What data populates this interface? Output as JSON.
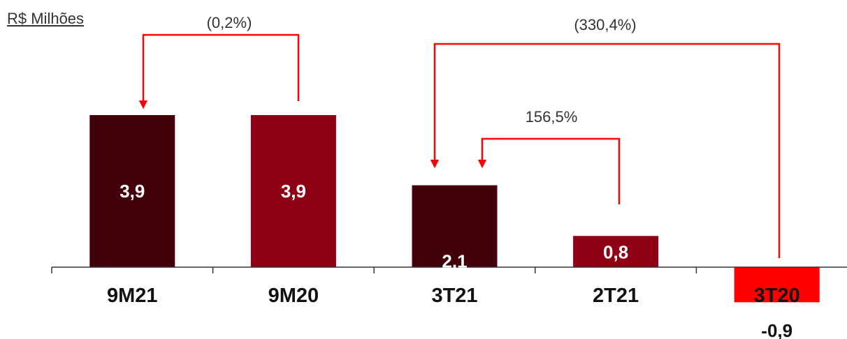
{
  "unit_label": "R$ Milhões",
  "colors": {
    "dark": "#42000A",
    "medium": "#8E0014",
    "negative": "#FF0000",
    "arrow": "#FF0000",
    "axis": "#333333"
  },
  "chart_data": {
    "type": "bar",
    "categories": [
      "9M21",
      "9M20",
      "3T21",
      "2T21",
      "3T20"
    ],
    "values": [
      3.9,
      3.9,
      2.1,
      0.8,
      -0.9
    ],
    "value_labels": [
      "3,9",
      "3,9",
      "2,1",
      "0,8",
      "-0,9"
    ],
    "bar_colors": [
      "#42000A",
      "#8E0014",
      "#42000A",
      "#8E0014",
      "#FF0000"
    ],
    "annotations": [
      {
        "label": "(0,2%)",
        "from": "9M20",
        "to": "9M21"
      },
      {
        "label": "(330,4%)",
        "from": "3T20",
        "to": "3T21"
      },
      {
        "label": "156,5%",
        "from": "2T21",
        "to": "3T21"
      }
    ],
    "title": "",
    "xlabel": "",
    "ylabel": "",
    "ylim": [
      -1.0,
      4.0
    ],
    "grid": false,
    "legend": "none"
  }
}
